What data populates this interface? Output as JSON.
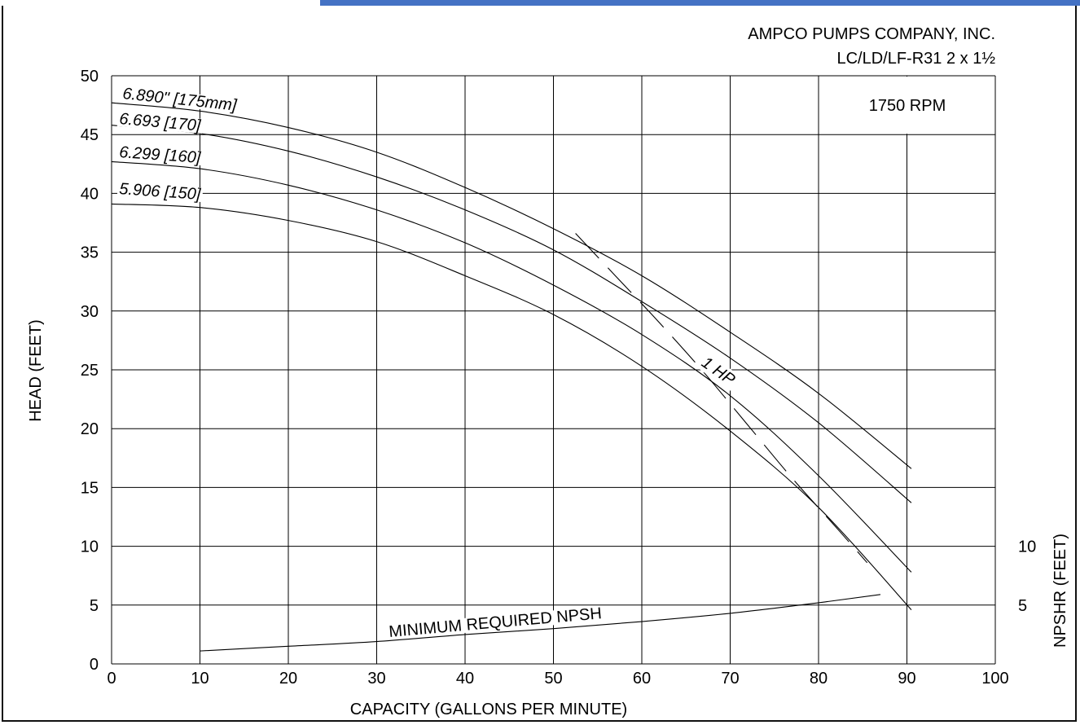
{
  "header": {
    "company": "AMPCO PUMPS COMPANY, INC.",
    "model": "LC/LD/LF-R31 2 x 1½",
    "rpm": "1750 RPM"
  },
  "chart_data": {
    "type": "line",
    "xlabel": "CAPACITY (GALLONS PER MINUTE)",
    "ylabel": "HEAD (FEET)",
    "y2label": "NPSHR (FEET)",
    "xlim": [
      0,
      100
    ],
    "ylim": [
      0,
      50
    ],
    "x_ticks": [
      "0",
      "10",
      "20",
      "30",
      "40",
      "50",
      "60",
      "70",
      "80",
      "90",
      "100"
    ],
    "y_ticks": [
      "0",
      "5",
      "10",
      "15",
      "20",
      "25",
      "30",
      "35",
      "40",
      "45",
      "50"
    ],
    "y2_ticks": [
      {
        "label": "5",
        "value": 5
      },
      {
        "label": "10",
        "value": 10
      }
    ],
    "grid": true,
    "series": [
      {
        "name": "6.890\" [175mm]",
        "x": [
          0,
          10,
          20,
          30,
          40,
          50,
          60,
          70,
          80,
          90.5
        ],
        "y": [
          47.7,
          47.0,
          45.6,
          43.5,
          40.5,
          37.0,
          33.0,
          28.2,
          23.0,
          16.6
        ]
      },
      {
        "name": "6.693 [170]",
        "x": [
          0,
          10,
          20,
          30,
          40,
          50,
          60,
          70,
          80,
          90.5
        ],
        "y": [
          45.8,
          45.1,
          43.6,
          41.4,
          38.6,
          35.2,
          30.8,
          26.0,
          20.5,
          13.7
        ]
      },
      {
        "name": "6.299 [160]",
        "x": [
          0,
          10,
          20,
          30,
          40,
          50,
          60,
          70,
          80,
          90.5
        ],
        "y": [
          42.7,
          42.1,
          40.7,
          38.6,
          35.8,
          32.2,
          28.0,
          22.8,
          16.0,
          7.8
        ]
      },
      {
        "name": "5.906 [150]",
        "x": [
          0,
          10,
          20,
          30,
          40,
          50,
          60,
          70,
          80,
          90.5
        ],
        "y": [
          39.1,
          38.8,
          37.7,
          35.9,
          33.0,
          29.7,
          25.3,
          19.8,
          13.3,
          4.6
        ]
      }
    ],
    "hp_line": {
      "label": "1 HP",
      "x": [
        52.5,
        57,
        62,
        67,
        72,
        77,
        82,
        85.5
      ],
      "y": [
        36.6,
        33.0,
        29.0,
        24.8,
        20.3,
        15.8,
        11.6,
        8.6
      ]
    },
    "npsh": {
      "label": "MINIMUM REQUIRED NPSH",
      "x": [
        10,
        20,
        30,
        40,
        50,
        60,
        70,
        80,
        87
      ],
      "y": [
        1.1,
        1.5,
        1.9,
        2.5,
        3.0,
        3.6,
        4.3,
        5.2,
        5.9
      ]
    }
  }
}
